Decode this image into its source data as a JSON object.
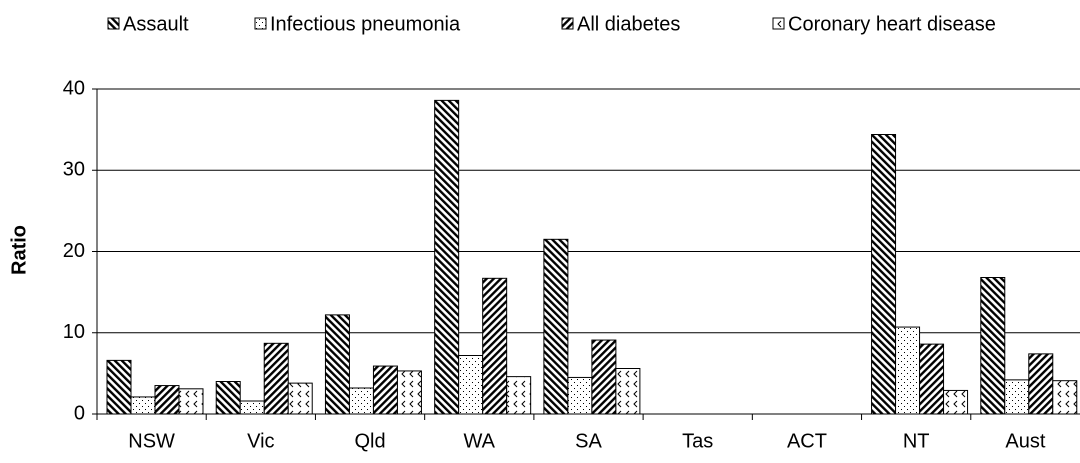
{
  "chart_data": {
    "type": "bar",
    "y_label": "Ratio",
    "categories": [
      "NSW",
      "Vic",
      "Qld",
      "WA",
      "SA",
      "Tas",
      "ACT",
      "NT",
      "Aust"
    ],
    "series": [
      {
        "name": "Assault",
        "color": "#000000",
        "pattern": "back-diagonal",
        "values": [
          6.6,
          4.0,
          12.2,
          38.6,
          21.5,
          null,
          null,
          34.4,
          16.8
        ]
      },
      {
        "name": "Infectious pneumonia",
        "color": "#000000",
        "pattern": "dots",
        "values": [
          2.1,
          1.6,
          3.2,
          7.2,
          4.5,
          null,
          null,
          10.7,
          4.2
        ]
      },
      {
        "name": "All diabetes",
        "color": "#000000",
        "pattern": "forward-diagonal",
        "values": [
          3.5,
          8.7,
          5.9,
          16.7,
          9.1,
          null,
          null,
          8.6,
          7.4
        ]
      },
      {
        "name": "Coronary heart disease",
        "color": "#000000",
        "pattern": "chevrons",
        "values": [
          3.1,
          3.8,
          5.3,
          4.6,
          5.6,
          null,
          null,
          2.9,
          4.1
        ]
      }
    ],
    "ylim": [
      0,
      40
    ],
    "yticks": [
      0,
      10,
      20,
      30,
      40
    ],
    "grid": true,
    "legend": "top"
  }
}
